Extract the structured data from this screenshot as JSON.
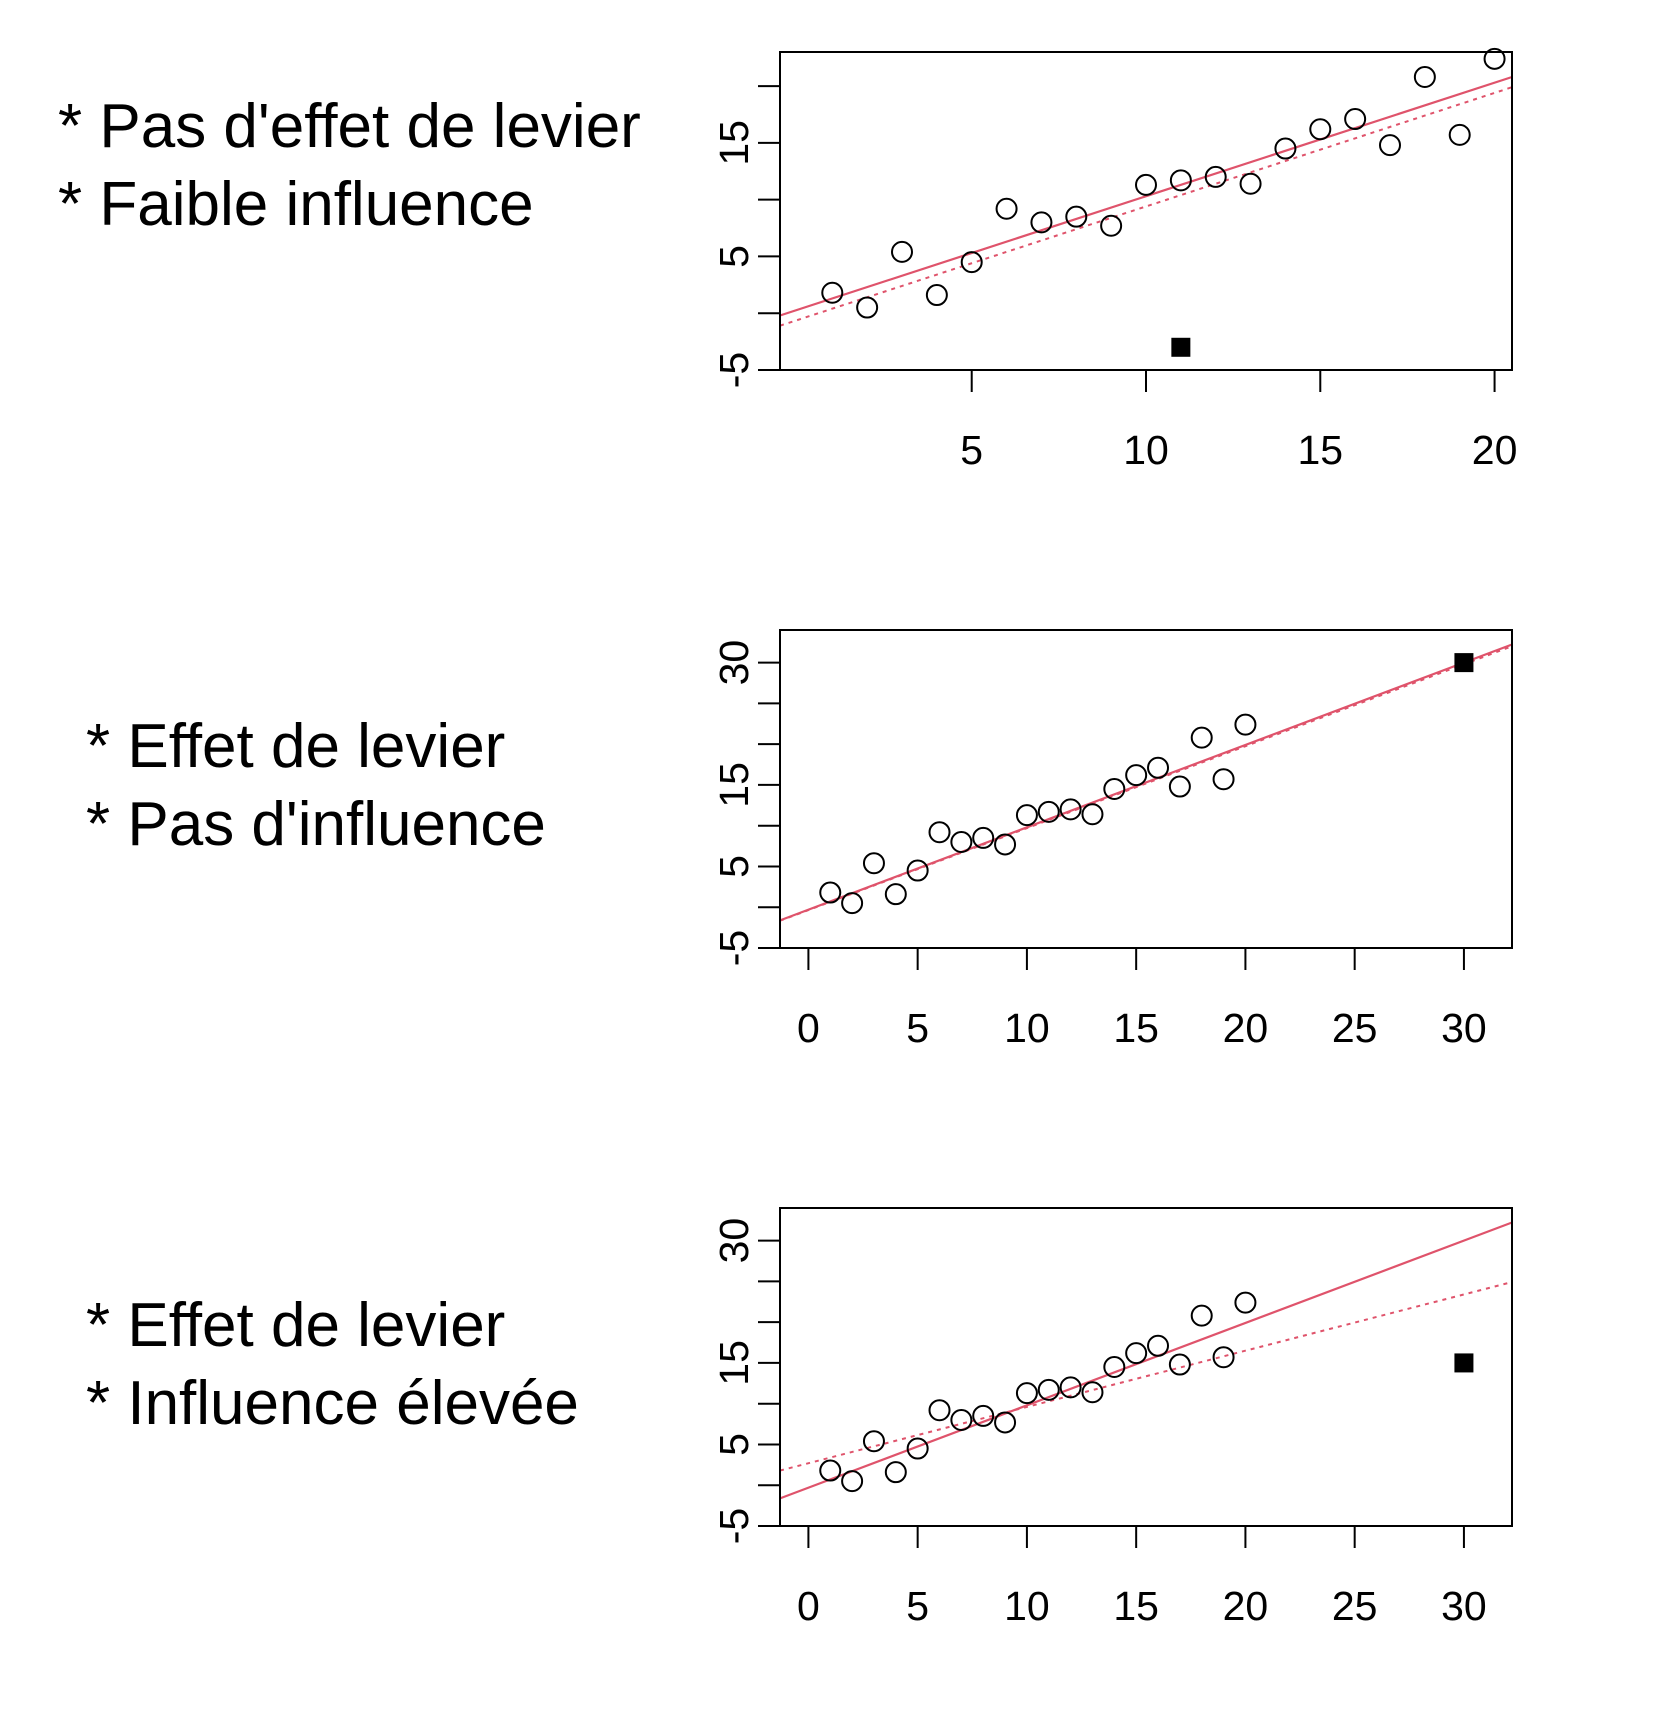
{
  "colors": {
    "fit_line": "#df536b",
    "points": "#000000",
    "frame": "#000000"
  },
  "panels": [
    {
      "caption": [
        "* Pas d'effet de levier",
        "* Faible influence"
      ],
      "xlim": [
        -0.5,
        20.5
      ],
      "ylim": [
        -5,
        23
      ],
      "xticks": [
        5,
        10,
        15,
        20
      ],
      "yticks": [
        -5,
        0,
        5,
        10,
        15,
        20
      ],
      "ytick_labels": [
        "-5",
        "",
        "5",
        "",
        "15",
        ""
      ]
    },
    {
      "caption": [
        "* Effet de levier",
        "* Pas d'influence"
      ],
      "xlim": [
        -1.3,
        32.2
      ],
      "ylim": [
        -5,
        34
      ],
      "xticks": [
        0,
        5,
        10,
        15,
        20,
        25,
        30
      ],
      "yticks": [
        -5,
        0,
        5,
        10,
        15,
        20,
        25,
        30
      ],
      "ytick_labels": [
        "-5",
        "",
        "5",
        "",
        "15",
        "",
        "",
        "30"
      ]
    },
    {
      "caption": [
        "* Effet de levier",
        "* Influence élevée"
      ],
      "xlim": [
        -1.3,
        32.2
      ],
      "ylim": [
        -5,
        34
      ],
      "xticks": [
        0,
        5,
        10,
        15,
        20,
        25,
        30
      ],
      "yticks": [
        -5,
        0,
        5,
        10,
        15,
        20,
        25,
        30
      ],
      "ytick_labels": [
        "-5",
        "",
        "5",
        "",
        "15",
        "",
        "",
        "30"
      ]
    }
  ],
  "chart_data": [
    {
      "type": "scatter",
      "title": "",
      "xlabel": "",
      "ylabel": "",
      "xlim": [
        -0.5,
        20.5
      ],
      "ylim": [
        -5,
        23
      ],
      "points": [
        {
          "x": 1,
          "y": 1.8
        },
        {
          "x": 2,
          "y": 0.5
        },
        {
          "x": 3,
          "y": 5.4
        },
        {
          "x": 4,
          "y": 1.6
        },
        {
          "x": 5,
          "y": 4.5
        },
        {
          "x": 6,
          "y": 9.2
        },
        {
          "x": 7,
          "y": 8.0
        },
        {
          "x": 8,
          "y": 8.5
        },
        {
          "x": 9,
          "y": 7.7
        },
        {
          "x": 10,
          "y": 11.3
        },
        {
          "x": 11,
          "y": 11.7
        },
        {
          "x": 12,
          "y": 12.0
        },
        {
          "x": 13,
          "y": 11.4
        },
        {
          "x": 14,
          "y": 14.5
        },
        {
          "x": 15,
          "y": 16.2
        },
        {
          "x": 16,
          "y": 17.1
        },
        {
          "x": 17,
          "y": 14.8
        },
        {
          "x": 18,
          "y": 20.8
        },
        {
          "x": 19,
          "y": 15.7
        },
        {
          "x": 20,
          "y": 22.4
        }
      ],
      "outlier": {
        "x": 11,
        "y": -3.0
      },
      "fit_solid": {
        "intercept": 0.3,
        "slope": 1.0
      },
      "fit_dashed": {
        "intercept": -0.6,
        "slope": 1.0
      }
    },
    {
      "type": "scatter",
      "title": "",
      "xlabel": "",
      "ylabel": "",
      "xlim": [
        -1.3,
        32.2
      ],
      "ylim": [
        -5,
        34
      ],
      "points": [
        {
          "x": 1,
          "y": 1.8
        },
        {
          "x": 2,
          "y": 0.5
        },
        {
          "x": 3,
          "y": 5.4
        },
        {
          "x": 4,
          "y": 1.6
        },
        {
          "x": 5,
          "y": 4.5
        },
        {
          "x": 6,
          "y": 9.2
        },
        {
          "x": 7,
          "y": 8.0
        },
        {
          "x": 8,
          "y": 8.5
        },
        {
          "x": 9,
          "y": 7.7
        },
        {
          "x": 10,
          "y": 11.3
        },
        {
          "x": 11,
          "y": 11.7
        },
        {
          "x": 12,
          "y": 12.0
        },
        {
          "x": 13,
          "y": 11.4
        },
        {
          "x": 14,
          "y": 14.5
        },
        {
          "x": 15,
          "y": 16.2
        },
        {
          "x": 16,
          "y": 17.1
        },
        {
          "x": 17,
          "y": 14.8
        },
        {
          "x": 18,
          "y": 20.8
        },
        {
          "x": 19,
          "y": 15.7
        },
        {
          "x": 20,
          "y": 22.4
        }
      ],
      "outlier": {
        "x": 30,
        "y": 30
      },
      "fit_solid": {
        "intercept": -0.3,
        "slope": 1.01
      },
      "fit_dashed": {
        "intercept": -0.35,
        "slope": 1.005
      }
    },
    {
      "type": "scatter",
      "title": "",
      "xlabel": "",
      "ylabel": "",
      "xlim": [
        -1.3,
        32.2
      ],
      "ylim": [
        -5,
        34
      ],
      "points": [
        {
          "x": 1,
          "y": 1.8
        },
        {
          "x": 2,
          "y": 0.5
        },
        {
          "x": 3,
          "y": 5.4
        },
        {
          "x": 4,
          "y": 1.6
        },
        {
          "x": 5,
          "y": 4.5
        },
        {
          "x": 6,
          "y": 9.2
        },
        {
          "x": 7,
          "y": 8.0
        },
        {
          "x": 8,
          "y": 8.5
        },
        {
          "x": 9,
          "y": 7.7
        },
        {
          "x": 10,
          "y": 11.3
        },
        {
          "x": 11,
          "y": 11.7
        },
        {
          "x": 12,
          "y": 12.0
        },
        {
          "x": 13,
          "y": 11.4
        },
        {
          "x": 14,
          "y": 14.5
        },
        {
          "x": 15,
          "y": 16.2
        },
        {
          "x": 16,
          "y": 17.1
        },
        {
          "x": 17,
          "y": 14.8
        },
        {
          "x": 18,
          "y": 20.8
        },
        {
          "x": 19,
          "y": 15.7
        },
        {
          "x": 20,
          "y": 22.4
        }
      ],
      "outlier": {
        "x": 30,
        "y": 15
      },
      "fit_solid": {
        "intercept": -0.3,
        "slope": 1.01
      },
      "fit_dashed": {
        "intercept": 2.7,
        "slope": 0.69
      }
    }
  ]
}
